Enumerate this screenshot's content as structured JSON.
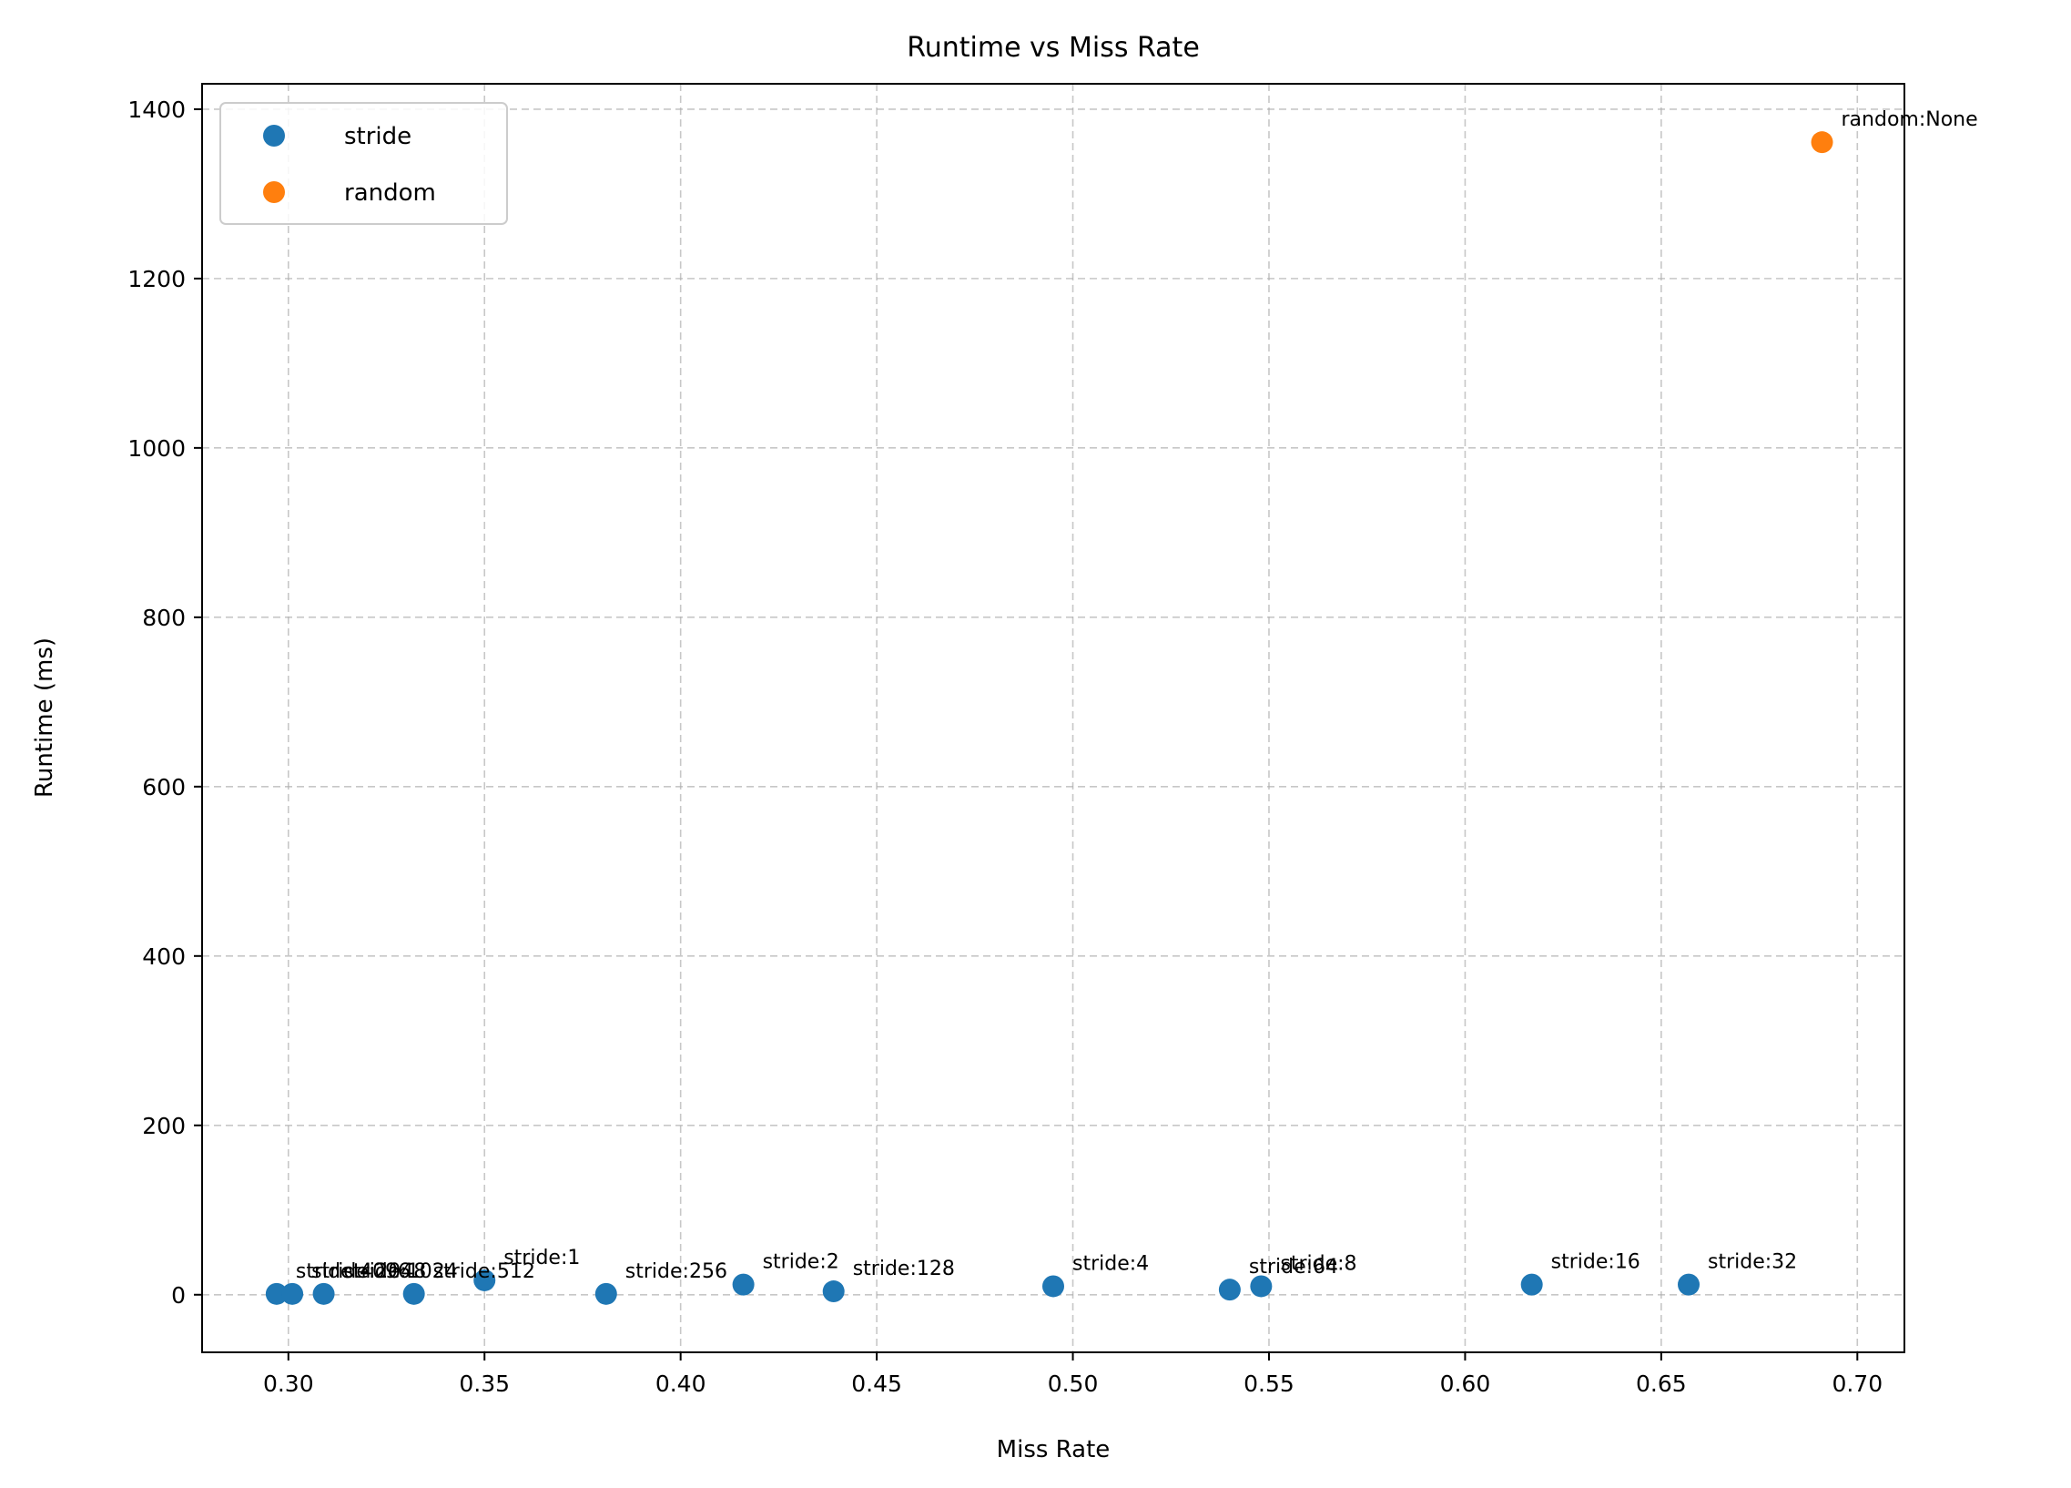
{
  "chart_data": {
    "type": "scatter",
    "title": "Runtime vs Miss Rate",
    "xlabel": "Miss Rate",
    "ylabel": "Runtime (ms)",
    "xlim": [
      0.278,
      0.712
    ],
    "ylim": [
      -68,
      1430
    ],
    "xticks": [
      0.3,
      0.35,
      0.4,
      0.45,
      0.5,
      0.55,
      0.6,
      0.65,
      0.7
    ],
    "xtick_labels": [
      "0.30",
      "0.35",
      "0.40",
      "0.45",
      "0.50",
      "0.55",
      "0.60",
      "0.65",
      "0.70"
    ],
    "yticks": [
      0,
      200,
      400,
      600,
      800,
      1000,
      1200,
      1400
    ],
    "ytick_labels": [
      "0",
      "200",
      "400",
      "600",
      "800",
      "1000",
      "1200",
      "1400"
    ],
    "grid": true,
    "legend_position": "top-left",
    "series": [
      {
        "name": "stride",
        "color": "#1f77b4",
        "points": [
          {
            "x": 0.297,
            "y": 1,
            "label": "stride:4096"
          },
          {
            "x": 0.301,
            "y": 1,
            "label": "stride:2048"
          },
          {
            "x": 0.309,
            "y": 1,
            "label": "stride:1024"
          },
          {
            "x": 0.332,
            "y": 1,
            "label": "stride:512"
          },
          {
            "x": 0.35,
            "y": 17,
            "label": "stride:1"
          },
          {
            "x": 0.381,
            "y": 1,
            "label": "stride:256"
          },
          {
            "x": 0.416,
            "y": 12,
            "label": "stride:2"
          },
          {
            "x": 0.439,
            "y": 4,
            "label": "stride:128"
          },
          {
            "x": 0.495,
            "y": 10,
            "label": "stride:4"
          },
          {
            "x": 0.54,
            "y": 6,
            "label": "stride:64"
          },
          {
            "x": 0.548,
            "y": 10,
            "label": "stride:8"
          },
          {
            "x": 0.617,
            "y": 12,
            "label": "stride:16"
          },
          {
            "x": 0.657,
            "y": 12,
            "label": "stride:32"
          }
        ]
      },
      {
        "name": "random",
        "color": "#ff7f0e",
        "points": [
          {
            "x": 0.691,
            "y": 1361,
            "label": "random:None"
          }
        ]
      }
    ]
  }
}
